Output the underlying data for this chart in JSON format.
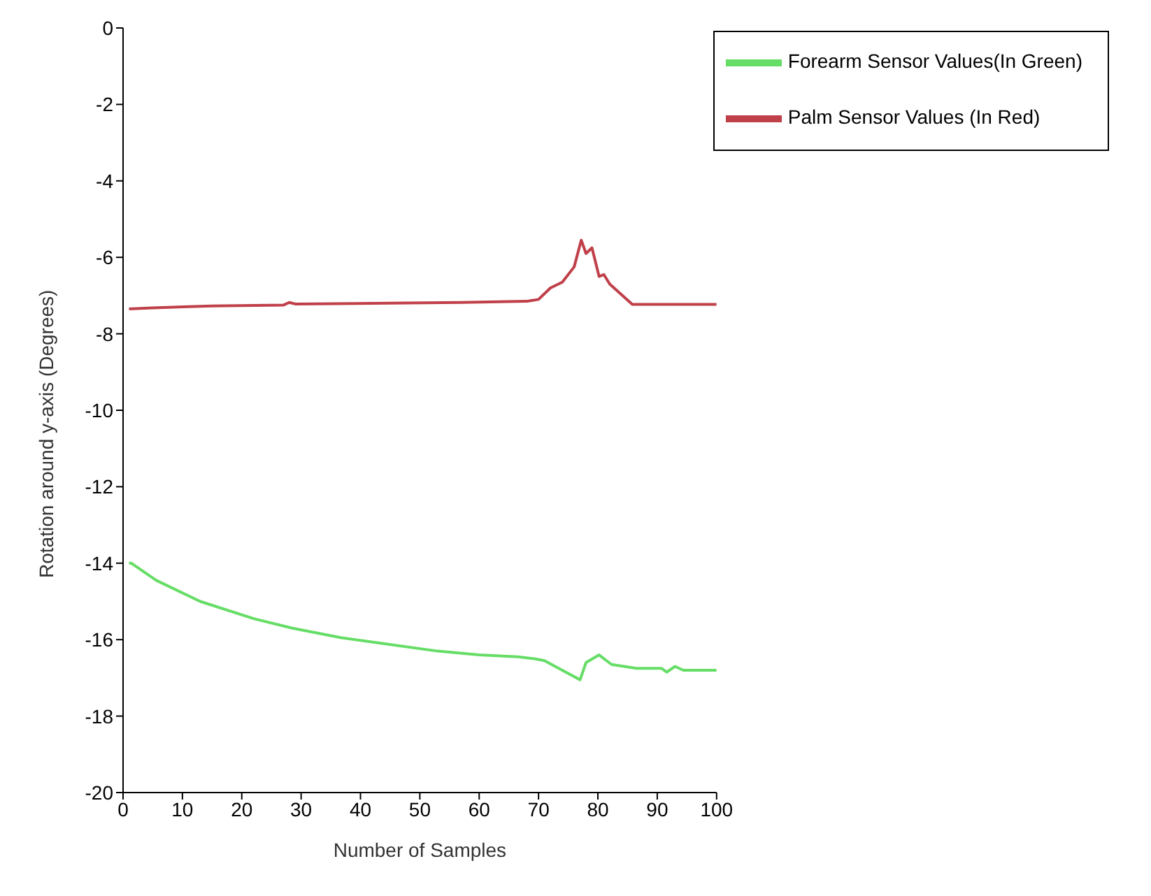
{
  "chart_data": {
    "type": "line",
    "xlabel": "Number of Samples",
    "ylabel": "Rotation around y-axis (Degrees)",
    "xlim": [
      0,
      100
    ],
    "xticks": [
      0,
      10,
      20,
      30,
      40,
      50,
      60,
      70,
      80,
      90,
      100
    ],
    "ylim": [
      -20,
      0
    ],
    "yticks": [
      -20,
      -18,
      -16,
      -14,
      -12,
      -10,
      -8,
      -6,
      -4,
      -2,
      0
    ],
    "grid": false,
    "legend": "top right",
    "marker": "none",
    "line_style": "solid",
    "series": [
      {
        "name": "Forearm Sensor Values(In Green)",
        "color": "#66dd66",
        "x": [
          1,
          1.4,
          5.6,
          13,
          22,
          28.5,
          36.8,
          43.8,
          53,
          60,
          66.5,
          69.3,
          71,
          74,
          77,
          78,
          80.2,
          82.3,
          86.5,
          90.7,
          91.6,
          93,
          94.4,
          100
        ],
        "values": [
          -14,
          -14,
          -14.45,
          -15,
          -15.45,
          -15.7,
          -15.95,
          -16.1,
          -16.3,
          -16.4,
          -16.45,
          -16.5,
          -16.55,
          -16.8,
          -17.05,
          -16.6,
          -16.4,
          -16.65,
          -16.75,
          -16.75,
          -16.85,
          -16.7,
          -16.8,
          -16.8
        ]
      },
      {
        "name": "Palm Sensor Values (In Red)",
        "color": "#c0404a",
        "x": [
          1,
          5,
          15,
          27,
          28,
          29,
          57,
          68,
          70,
          72,
          74,
          76,
          77.2,
          78,
          79,
          80.2,
          81,
          82,
          85.8,
          100
        ],
        "values": [
          -7.35,
          -7.32,
          -7.27,
          -7.25,
          -7.18,
          -7.22,
          -7.18,
          -7.15,
          -7.1,
          -6.8,
          -6.65,
          -6.25,
          -5.55,
          -5.9,
          -5.75,
          -6.5,
          -6.45,
          -6.7,
          -7.23,
          -7.23
        ]
      }
    ]
  }
}
